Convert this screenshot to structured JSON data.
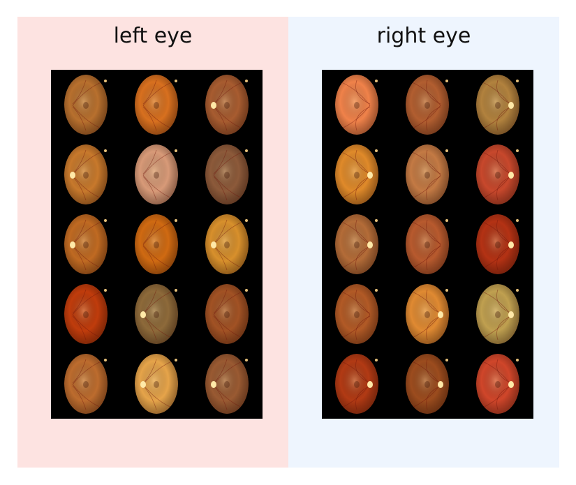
{
  "panels": [
    {
      "id": "left",
      "title": "left eye",
      "background": "#fde3e1",
      "disc_side": "left",
      "images": [
        {
          "color": "#b8702e",
          "disc": false
        },
        {
          "color": "#d8701f",
          "disc": false
        },
        {
          "color": "#a85c30",
          "disc": true
        },
        {
          "color": "#c8792c",
          "disc": true
        },
        {
          "color": "#d89a78",
          "disc": false
        },
        {
          "color": "#8d5a3a",
          "disc": false
        },
        {
          "color": "#c06a22",
          "disc": true
        },
        {
          "color": "#d06a12",
          "disc": false
        },
        {
          "color": "#d8902c",
          "disc": true
        },
        {
          "color": "#c03c0c",
          "disc": false
        },
        {
          "color": "#8e6a3a",
          "disc": true
        },
        {
          "color": "#a25224",
          "disc": false
        },
        {
          "color": "#bd6c2e",
          "disc": false
        },
        {
          "color": "#e6a44a",
          "disc": true
        },
        {
          "color": "#9a5a32",
          "disc": true
        }
      ]
    },
    {
      "id": "right",
      "title": "right eye",
      "background": "#eef5fe",
      "disc_side": "right",
      "images": [
        {
          "color": "#f0824a",
          "disc": false
        },
        {
          "color": "#b25e30",
          "disc": false
        },
        {
          "color": "#b2823e",
          "disc": true
        },
        {
          "color": "#e08a2a",
          "disc": true
        },
        {
          "color": "#c47a44",
          "disc": false
        },
        {
          "color": "#c8482c",
          "disc": true
        },
        {
          "color": "#b46c38",
          "disc": true
        },
        {
          "color": "#b85a2e",
          "disc": false
        },
        {
          "color": "#b43214",
          "disc": true
        },
        {
          "color": "#b25a26",
          "disc": false
        },
        {
          "color": "#e08a32",
          "disc": true
        },
        {
          "color": "#c0a050",
          "disc": true
        },
        {
          "color": "#b23a14",
          "disc": true
        },
        {
          "color": "#9c4c1e",
          "disc": true
        },
        {
          "color": "#d0462a",
          "disc": true
        }
      ]
    }
  ]
}
